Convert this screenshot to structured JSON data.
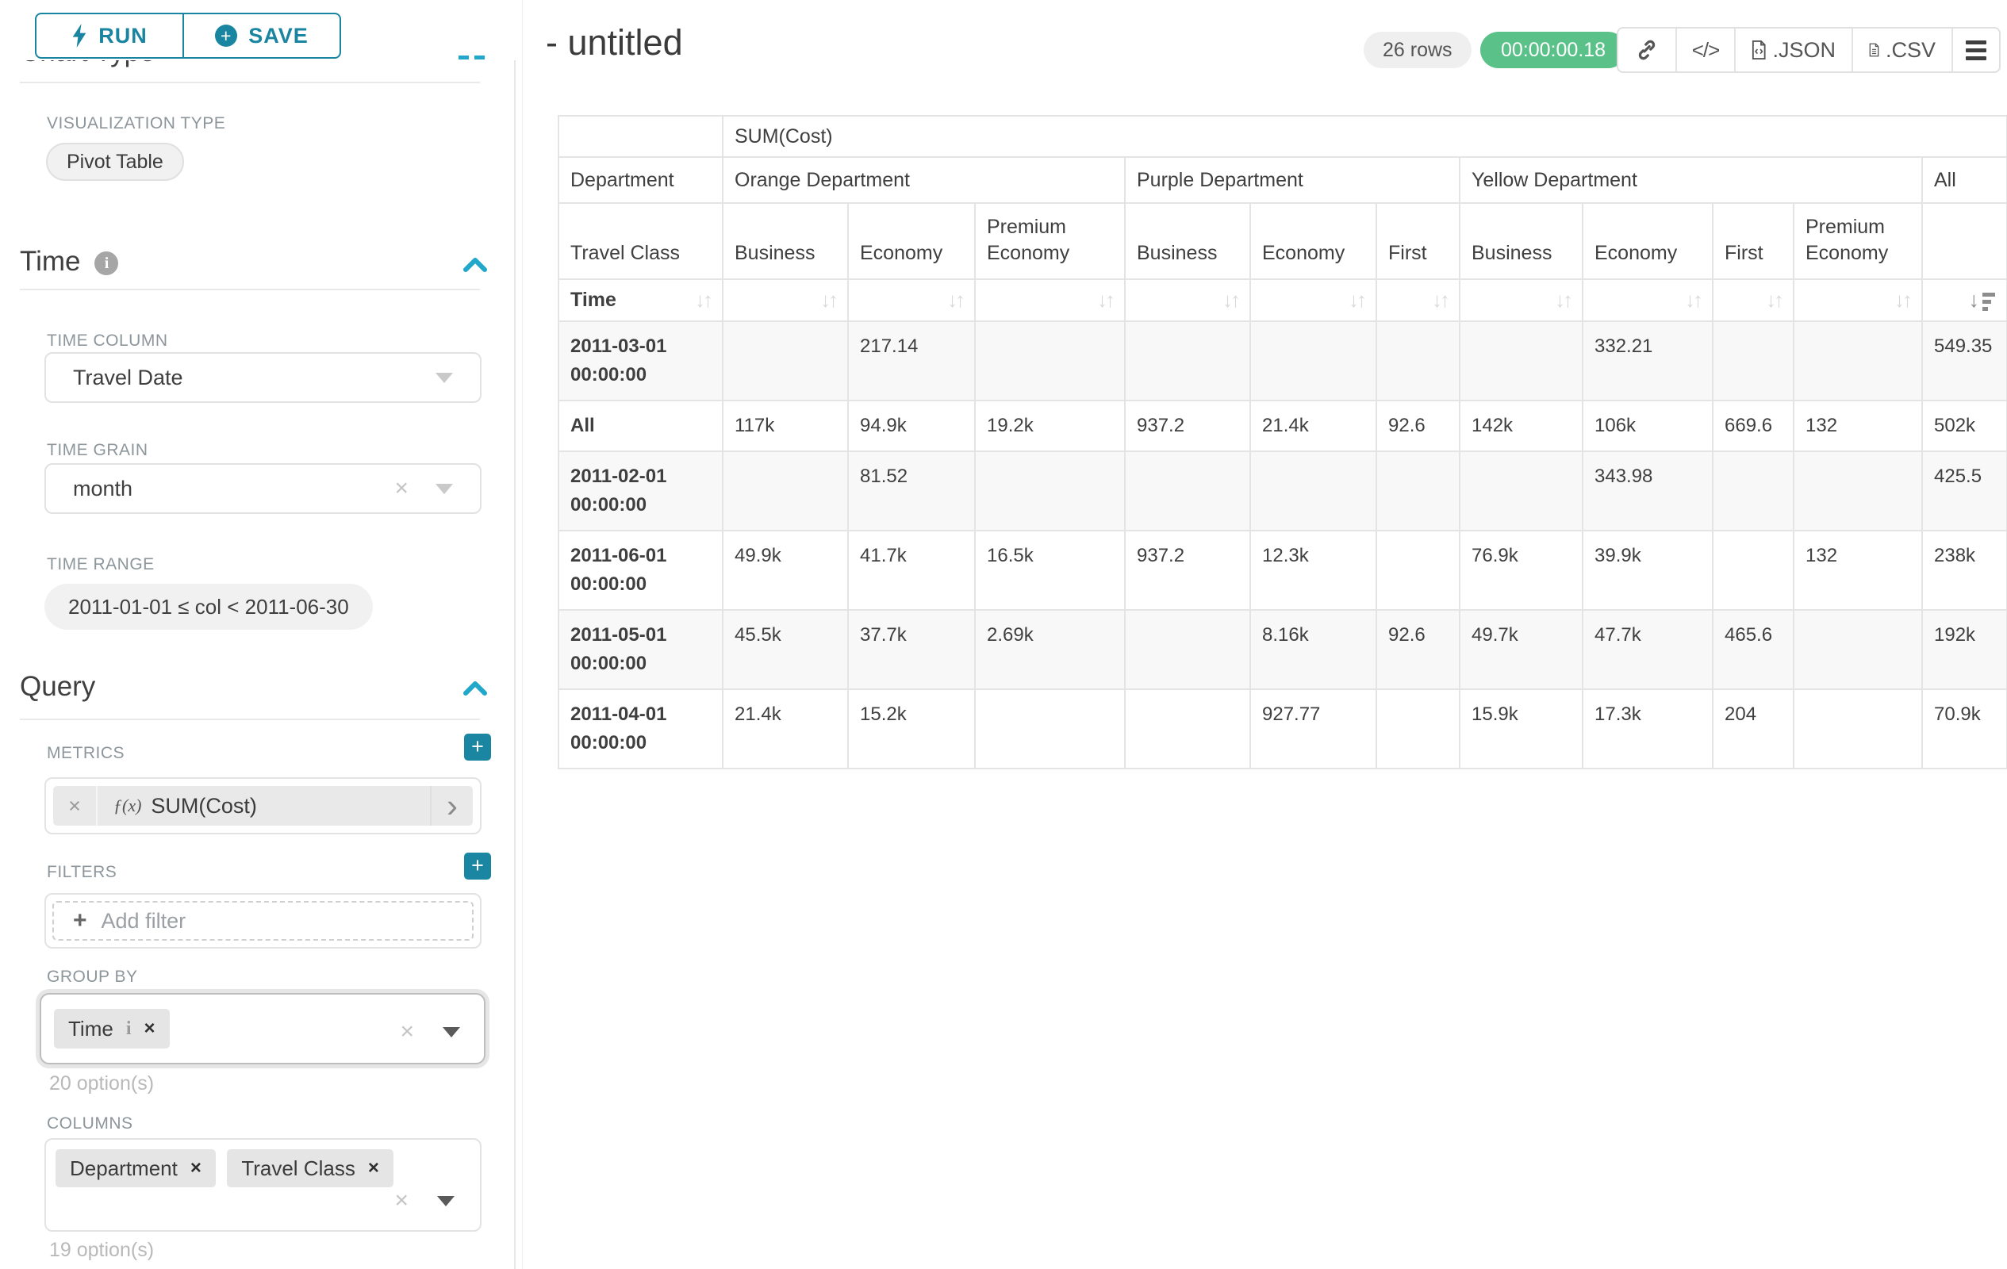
{
  "colors": {
    "accent_teal": "#1985a0",
    "chevron_teal": "#20a7c9",
    "timer_green": "#5ac189"
  },
  "sidebar": {
    "run_label": "RUN",
    "save_label": "SAVE",
    "chart_type": {
      "title": "Chart Type",
      "viz_label": "VISUALIZATION TYPE",
      "viz_value": "Pivot Table"
    },
    "time": {
      "title": "Time",
      "time_column_label": "TIME COLUMN",
      "time_column_value": "Travel Date",
      "time_grain_label": "TIME GRAIN",
      "time_grain_value": "month",
      "time_range_label": "TIME RANGE",
      "time_range_value": "2011-01-01 ≤ col < 2011-06-30"
    },
    "query": {
      "title": "Query",
      "metrics_label": "METRICS",
      "metric_fx": "ƒ(x)",
      "metric_value": "SUM(Cost)",
      "filters_label": "FILTERS",
      "add_filter_label": "Add filter",
      "groupby_label": "GROUP BY",
      "groupby_chips": [
        "Time"
      ],
      "groupby_options": "20 option(s)",
      "columns_label": "COLUMNS",
      "columns_chips": [
        "Department",
        "Travel Class"
      ],
      "columns_options": "19 option(s)"
    }
  },
  "header": {
    "title": "- untitled",
    "rows_badge": "26 rows",
    "timer": "00:00:00.18",
    "embed_glyph": "</>",
    "json_label": ".JSON",
    "csv_label": ".CSV"
  },
  "pivot_table": {
    "metric_header": "SUM(Cost)",
    "dept_label": "Department",
    "class_label": "Travel Class",
    "time_label": "Time",
    "groups": [
      {
        "name": "Orange Department",
        "cols": [
          "Business",
          "Economy",
          "Premium Economy"
        ]
      },
      {
        "name": "Purple Department",
        "cols": [
          "Business",
          "Economy",
          "First"
        ]
      },
      {
        "name": "Yellow Department",
        "cols": [
          "Business",
          "Economy",
          "First",
          "Premium Economy"
        ]
      },
      {
        "name": "All",
        "cols": [
          ""
        ]
      }
    ],
    "rows": [
      {
        "label": "2011-03-01 00:00:00",
        "values": [
          "",
          "217.14",
          "",
          "",
          "",
          "",
          "",
          "332.21",
          "",
          "",
          "549.35"
        ]
      },
      {
        "label": "All",
        "values": [
          "117k",
          "94.9k",
          "19.2k",
          "937.2",
          "21.4k",
          "92.6",
          "142k",
          "106k",
          "669.6",
          "132",
          "502k"
        ]
      },
      {
        "label": "2011-02-01 00:00:00",
        "values": [
          "",
          "81.52",
          "",
          "",
          "",
          "",
          "",
          "343.98",
          "",
          "",
          "425.5"
        ]
      },
      {
        "label": "2011-06-01 00:00:00",
        "values": [
          "49.9k",
          "41.7k",
          "16.5k",
          "937.2",
          "12.3k",
          "",
          "76.9k",
          "39.9k",
          "",
          "132",
          "238k"
        ]
      },
      {
        "label": "2011-05-01 00:00:00",
        "values": [
          "45.5k",
          "37.7k",
          "2.69k",
          "",
          "8.16k",
          "92.6",
          "49.7k",
          "47.7k",
          "465.6",
          "",
          "192k"
        ]
      },
      {
        "label": "2011-04-01 00:00:00",
        "values": [
          "21.4k",
          "15.2k",
          "",
          "",
          "927.77",
          "",
          "15.9k",
          "17.3k",
          "204",
          "",
          "70.9k"
        ]
      }
    ]
  }
}
